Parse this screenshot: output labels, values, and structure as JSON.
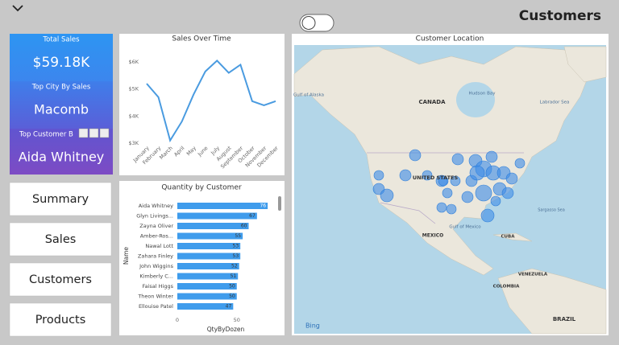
{
  "header": {
    "title": "Customers"
  },
  "cards": [
    {
      "label": "Total Sales",
      "value": "$59.18K"
    },
    {
      "label": "Top City By Sales",
      "value": "Macomb"
    },
    {
      "label": "Top Customer B",
      "value": "Aida Whitney"
    }
  ],
  "nav": [
    "Summary",
    "Sales",
    "Customers",
    "Products"
  ],
  "sales_chart": {
    "type": "line",
    "title": "Sales Over Time",
    "categories": [
      "January",
      "February",
      "March",
      "April",
      "May",
      "June",
      "July",
      "August",
      "September",
      "October",
      "November",
      "December"
    ],
    "values": [
      5200,
      4700,
      3100,
      3800,
      4800,
      5650,
      6050,
      5600,
      5900,
      4550,
      4400,
      4550
    ],
    "color": "#4a9be0",
    "ylim": [
      3000,
      6300
    ],
    "yticks": [
      {
        "value": 3000,
        "label": "$3K"
      },
      {
        "value": 4000,
        "label": "$4K"
      },
      {
        "value": 5000,
        "label": "$5K"
      },
      {
        "value": 6000,
        "label": "$6K"
      }
    ]
  },
  "qty_chart": {
    "type": "bar",
    "title": "Quantity by Customer",
    "categories": [
      "Aida Whitney",
      "Glyn Livings...",
      "Zayna Oliver",
      "Amber-Ros...",
      "Nawal Lott",
      "Zahara Finley",
      "John Wiggins",
      "Kimberly C...",
      "Faisal Higgs",
      "Theon Winter",
      "Ellouise Patel"
    ],
    "values": [
      76,
      67,
      60,
      55,
      53,
      53,
      52,
      51,
      50,
      50,
      47
    ],
    "color": "#3f9cec",
    "xlim": [
      0,
      80
    ],
    "xticks": [
      0,
      50
    ],
    "x_label": "QtyByDozen",
    "y_label": "Name"
  },
  "map": {
    "title": "Customer Location",
    "labels": [
      "Gulf of Alaska",
      "CANADA",
      "Hudson Bay",
      "Labrador Sea",
      "UNITED STATES",
      "MEXICO",
      "Gulf of Mexico",
      "CUBA",
      "Sargasso Sea",
      "VENEZUELA",
      "COLOMBIA",
      "BRAZIL"
    ],
    "attribution": "Bing"
  }
}
